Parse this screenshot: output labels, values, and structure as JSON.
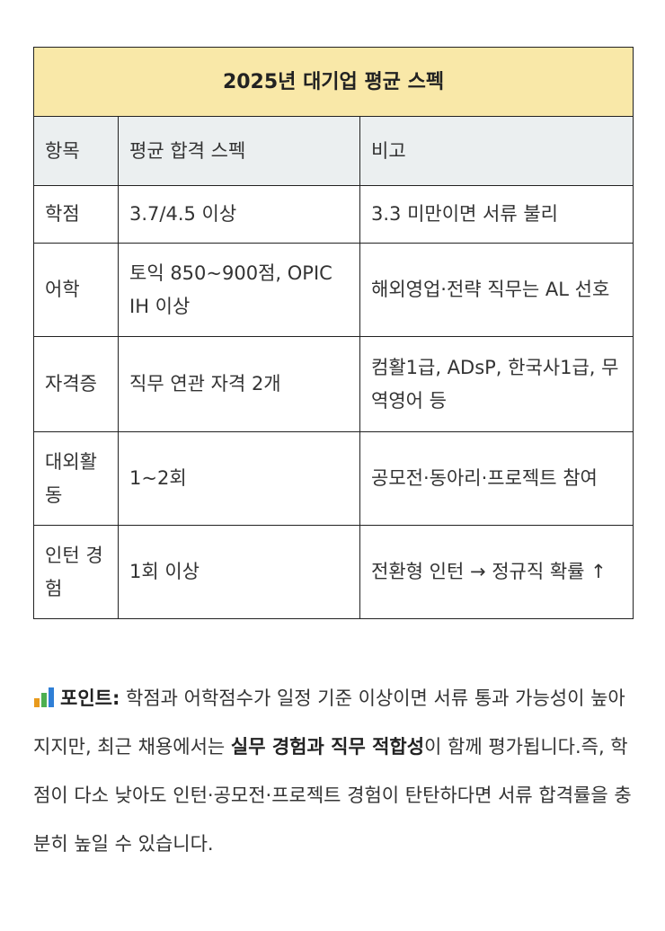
{
  "table": {
    "title": "2025년 대기업 평균 스펙",
    "headers": [
      "항목",
      "평균 합격 스펙",
      "비고"
    ],
    "rows": [
      {
        "item": "학점",
        "spec": "3.7/4.5 이상",
        "note": "3.3 미만이면 서류 불리"
      },
      {
        "item": "어학",
        "spec": "토익 850~900점, OPIC IH 이상",
        "note": "해외영업·전략 직무는 AL 선호"
      },
      {
        "item": "자격증",
        "spec": "직무 연관 자격 2개",
        "note": "컴활1급, ADsP, 한국사1급, 무역영어 등"
      },
      {
        "item": "대외활동",
        "spec": "1~2회",
        "note": "공모전·동아리·프로젝트 참여"
      },
      {
        "item": "인턴 경험",
        "spec": "1회 이상",
        "note": "전환형 인턴 → 정규직 확률 ↑"
      }
    ],
    "colors": {
      "title_bg": "#f9e8a8",
      "header_bg": "#ebeff0"
    }
  },
  "point": {
    "icon": "bar-chart-icon",
    "label": "포인트:",
    "text1": " 학점과 어학점수가 일정 기준 이상이면 서류 통과 가능성이 높아지지만, 최근 채용에서는 ",
    "bold": "실무 경험과 직무 적합성",
    "text2": "이 함께 평가됩니다.즉, 학점이 다소 낮아도 인턴·공모전·프로젝트 경험이 탄탄하다면 서류 합격률을 충분히 높일 수 있습니다."
  }
}
